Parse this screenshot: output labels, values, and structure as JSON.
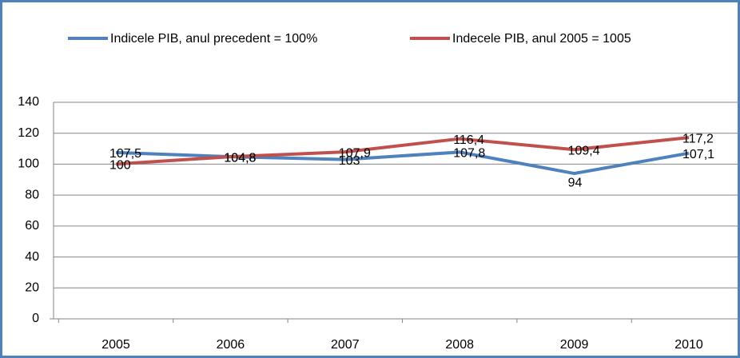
{
  "chart_data": {
    "type": "line",
    "categories": [
      "2005",
      "2006",
      "2007",
      "2008",
      "2009",
      "2010"
    ],
    "series": [
      {
        "name": "Indicele PIB, anul precedent = 100%",
        "color": "#4f81bd",
        "values": [
          107.5,
          104.8,
          103,
          107.8,
          94,
          107.1
        ],
        "value_labels": [
          "107,5",
          "104,8",
          "103",
          "107,8",
          "94",
          "107,1"
        ]
      },
      {
        "name": "Indecele PIB, anul 2005 = 1005",
        "color": "#c0504d",
        "values": [
          100,
          104.8,
          107.9,
          116.4,
          109.4,
          117.2
        ],
        "value_labels": [
          "100",
          "104,8",
          "107,9",
          "116,4",
          "109,4",
          "117,2"
        ]
      }
    ],
    "ylim": [
      0,
      140
    ],
    "yticks": [
      0,
      20,
      40,
      60,
      80,
      100,
      120,
      140
    ],
    "grid": true,
    "legend": "top"
  }
}
